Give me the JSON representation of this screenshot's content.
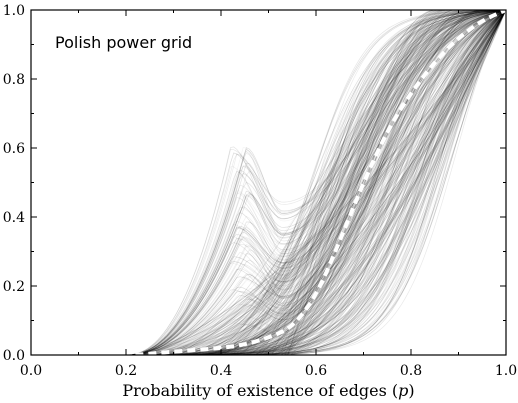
{
  "chart_data": {
    "type": "line",
    "title": "",
    "annotation": "Polish power grid",
    "xlabel": "Probability of existence of edges (p)",
    "ylabel": "",
    "xlim": [
      0.0,
      1.0
    ],
    "ylim": [
      0.0,
      1.0
    ],
    "xticks": [
      "0.0",
      "0.2",
      "0.4",
      "0.6",
      "0.8",
      "1.0"
    ],
    "yticks": [
      "0.0",
      "0.2",
      "0.4",
      "0.6",
      "0.8",
      "1.0"
    ],
    "grid": false,
    "legend": "none",
    "colors": {
      "ensemble": "#000000",
      "mean": "#ffffff",
      "background": "#ffffff"
    },
    "mean_curve": {
      "style": "dashed-white",
      "x": [
        0.22,
        0.3,
        0.4,
        0.45,
        0.5,
        0.55,
        0.6,
        0.65,
        0.7,
        0.75,
        0.8,
        0.85,
        0.9,
        0.95,
        1.0
      ],
      "y": [
        0.0,
        0.01,
        0.02,
        0.03,
        0.05,
        0.08,
        0.17,
        0.33,
        0.5,
        0.65,
        0.76,
        0.85,
        0.92,
        0.97,
        1.0
      ]
    },
    "ensemble": {
      "description_count": 500,
      "onset_range": [
        0.2,
        0.55
      ],
      "peak_bump": {
        "x": 0.44,
        "max_y": 0.62,
        "dip_x": 0.53,
        "dip_y": 0.44
      },
      "end_point": [
        1.0,
        1.0
      ]
    }
  }
}
